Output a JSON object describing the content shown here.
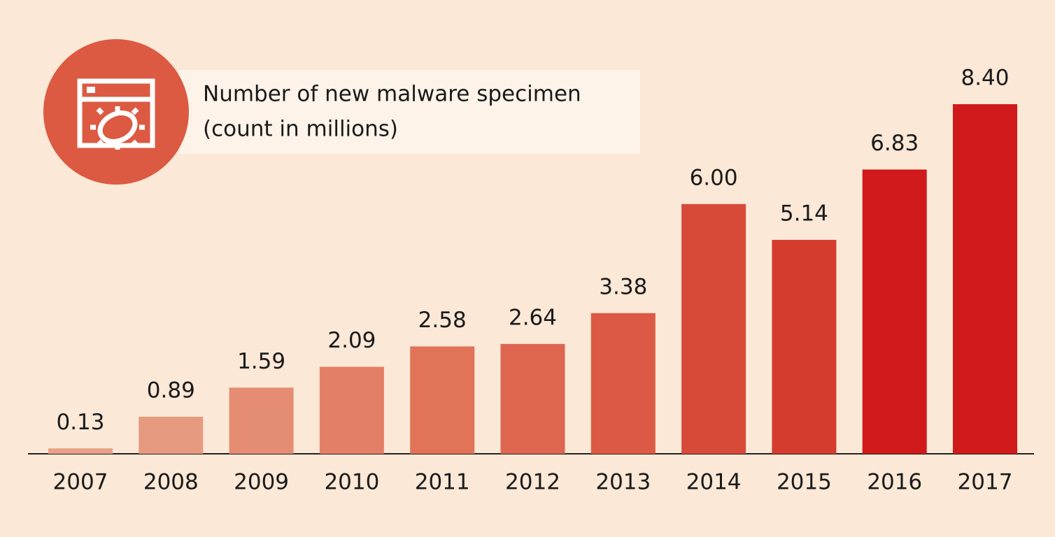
{
  "chart_data": {
    "type": "bar",
    "title": "Number of new malware specimen",
    "subtitle": "(count in millions)",
    "categories": [
      "2007",
      "2008",
      "2009",
      "2010",
      "2011",
      "2012",
      "2013",
      "2014",
      "2015",
      "2016",
      "2017"
    ],
    "values": [
      0.13,
      0.89,
      1.59,
      2.09,
      2.58,
      2.64,
      3.38,
      6.0,
      5.14,
      6.83,
      8.4
    ],
    "value_labels": [
      "0.13",
      "0.89",
      "1.59",
      "2.09",
      "2.58",
      "2.64",
      "3.38",
      "6.00",
      "5.14",
      "6.83",
      "8.40"
    ],
    "colors": [
      "#e8a088",
      "#e69a7f",
      "#e58d73",
      "#e27f66",
      "#e07358",
      "#de6650",
      "#dc5a45",
      "#d84a38",
      "#d43c2e",
      "#d0191b",
      "#d0191b"
    ]
  }
}
